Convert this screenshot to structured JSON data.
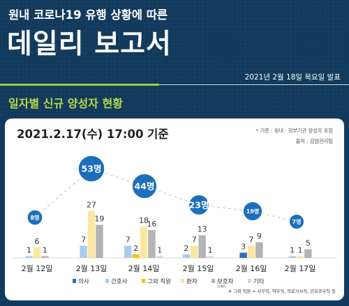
{
  "header": {
    "supertitle": "원내 코로나19 유행 상황에 따른",
    "title": "데일리 보고서",
    "date": "2021년 2월 18일 목요일 발표",
    "section_title": "일자별 신규 양성자 현황"
  },
  "chart_data": {
    "type": "bar",
    "title": "2021.2.17(수) 17:00 기준",
    "source_lines": [
      "* 기준 : 원내 · 외부기관 양성자 포함",
      "출처 : 감염관리팀"
    ],
    "categories": [
      "2월 12일",
      "2월 13일",
      "2월 14일",
      "2월 15일",
      "2월 16일",
      "2월 17일"
    ],
    "totals": [
      "8명",
      "53명",
      "44명",
      "23명",
      "19명",
      "7명"
    ],
    "total_values": [
      8,
      53,
      44,
      23,
      19,
      7
    ],
    "series": [
      {
        "name": "의사",
        "color": "#2f6fb8",
        "values": [
          0,
          0,
          0,
          0,
          3,
          0
        ]
      },
      {
        "name": "간호사",
        "color": "#a9cdef",
        "values": [
          1,
          7,
          7,
          2,
          0,
          1
        ]
      },
      {
        "name": "그외 직원",
        "color": "#f2c200",
        "values": [
          0,
          0,
          2,
          0,
          0,
          0
        ]
      },
      {
        "name": "환자",
        "color": "#fbe7a0",
        "values": [
          6,
          27,
          18,
          7,
          7,
          1
        ]
      },
      {
        "name": "보호자",
        "color": "#b4b4b4",
        "values": [
          1,
          19,
          16,
          13,
          9,
          5
        ]
      },
      {
        "name": "기타",
        "color": "#d8d8d8",
        "values": [
          0,
          0,
          1,
          1,
          0,
          0
        ]
      }
    ],
    "legend_subtext": "(간병인)",
    "footnote": "※ 그외 직원 = 사무직, 약무직, 의료기사직, 간호조무직 등"
  },
  "colors": {
    "background": "#123a5c",
    "accent_green": "#9ccb3b",
    "bubble": "#1d6fbd",
    "dash_line": "#c9d3dd"
  }
}
